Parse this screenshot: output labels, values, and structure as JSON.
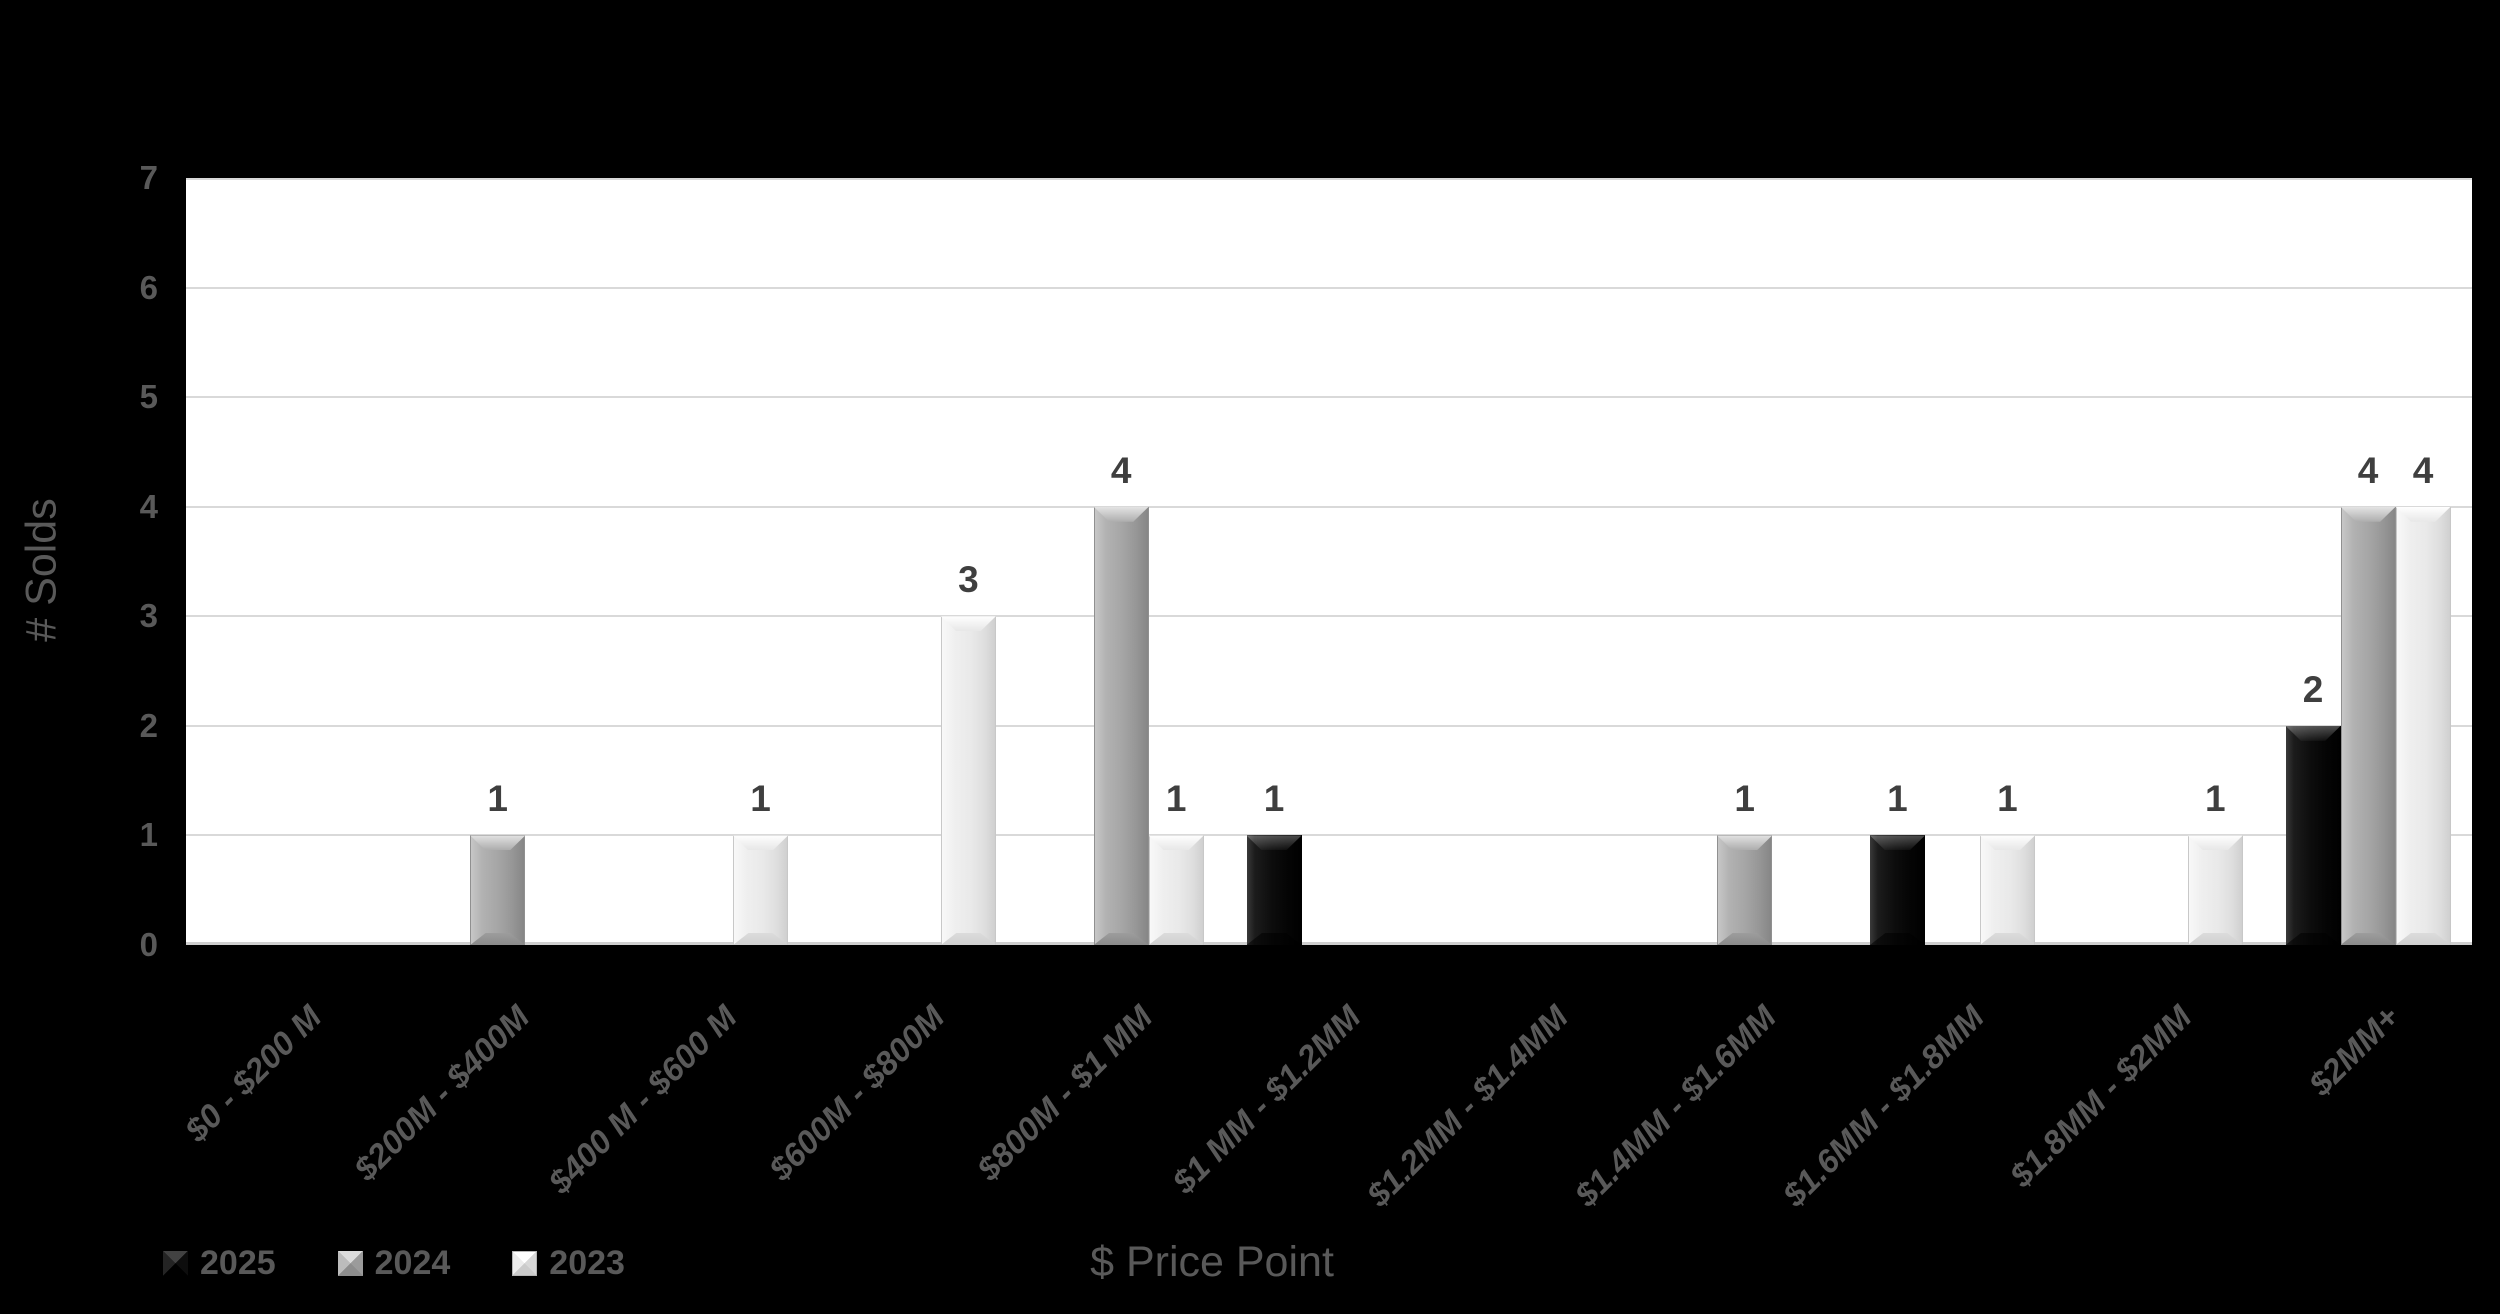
{
  "background": "#000000",
  "colors": {
    "plot_background": "#ffffff",
    "gridline": "#d9d9d9",
    "axis_line": "#cfcfcf",
    "axis_text": "#595959",
    "data_label": "#3f3f3f"
  },
  "chart_data": {
    "type": "bar",
    "title": "",
    "xlabel": "$ Price Point",
    "ylabel": "# Solds",
    "ylim": [
      0,
      7
    ],
    "yticks": [
      0,
      1,
      2,
      3,
      4,
      5,
      6,
      7
    ],
    "grid": true,
    "data_labels": true,
    "legend_position": "bottom-left",
    "categories": [
      "$0 - $200 M",
      "$200M - $400M",
      "$400 M - $600 M",
      "$600M - $800M",
      "$800M - $1 MM",
      "$1 MM - $1.2MM",
      "$1.2MM - $1.4MM",
      "$1.4MM - $1.6MM",
      "$1.6MM - $1.8MM",
      "$1.8MM - $2MM",
      "$2MM+"
    ],
    "series": [
      {
        "name": "2025",
        "color": "#111111",
        "values": [
          null,
          null,
          null,
          null,
          null,
          1,
          null,
          null,
          1,
          null,
          2
        ]
      },
      {
        "name": "2024",
        "color": "#a6a6a6",
        "values": [
          null,
          1,
          null,
          null,
          4,
          null,
          null,
          1,
          null,
          null,
          4
        ]
      },
      {
        "name": "2023",
        "color": "#ebebeb",
        "values": [
          null,
          null,
          1,
          3,
          1,
          null,
          null,
          null,
          1,
          1,
          4
        ]
      }
    ]
  }
}
